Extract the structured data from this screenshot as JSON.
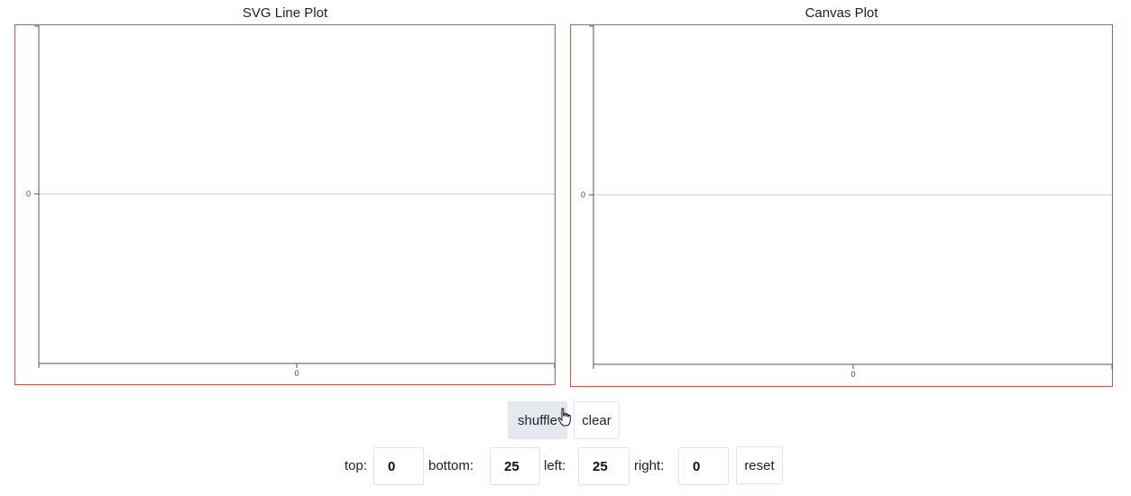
{
  "plots": {
    "svg": {
      "title": "SVG Line Plot",
      "y_tick": "0",
      "x_tick": "0"
    },
    "canvas": {
      "title": "Canvas Plot",
      "y_tick": "0",
      "x_tick": "0"
    }
  },
  "chart_data": [
    {
      "type": "line",
      "title": "SVG Line Plot",
      "series": [],
      "yticks": [
        "0"
      ],
      "xticks": [
        "0"
      ],
      "grid": true
    },
    {
      "type": "line",
      "title": "Canvas Plot",
      "series": [],
      "yticks": [
        "0"
      ],
      "xticks": [
        "0"
      ],
      "grid": true
    }
  ],
  "controls": {
    "shuffle_label": "shuffle",
    "clear_label": "clear",
    "reset_label": "reset"
  },
  "margins": {
    "top_label": "top:",
    "top_value": "0",
    "bottom_label": "bottom:",
    "bottom_value": "25",
    "left_label": "left:",
    "left_value": "25",
    "right_label": "right:",
    "right_value": "0"
  },
  "colors": {
    "plot_border": "#d9534f",
    "axis": "#555555",
    "gridline": "#cccccc",
    "button_hover": "#e5e9ef"
  }
}
